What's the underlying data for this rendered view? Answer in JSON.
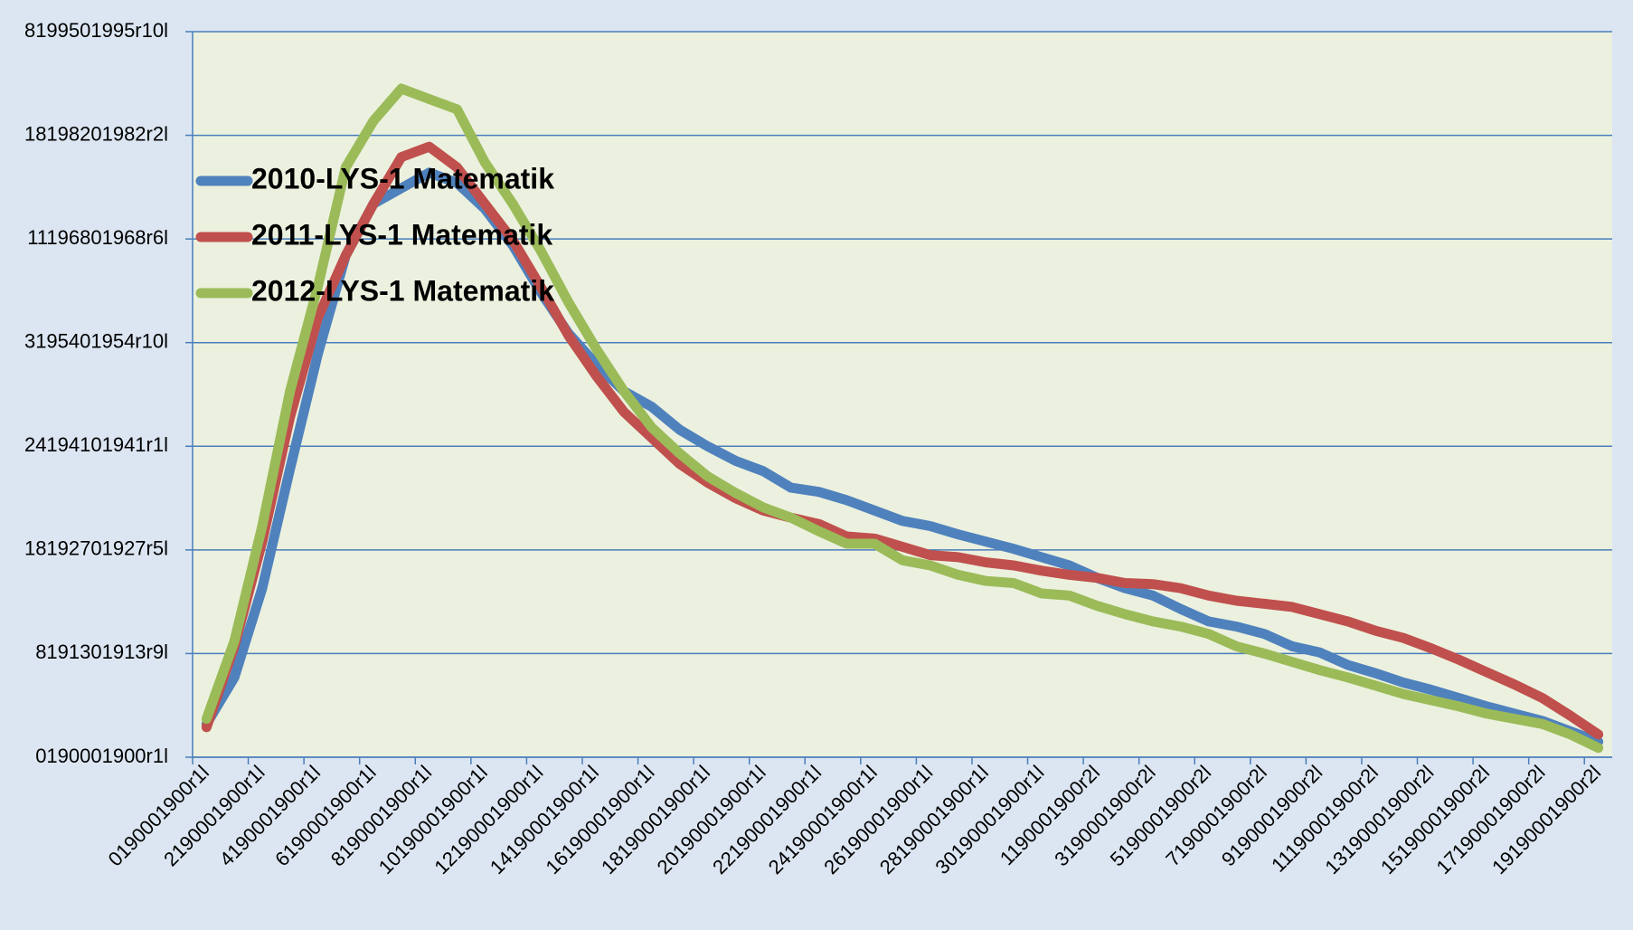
{
  "chart_data": {
    "type": "line",
    "categories": [
      "0190001900r1l",
      null,
      "2190001900r1l",
      null,
      "4190001900r1l",
      null,
      "6190001900r1l",
      null,
      "8190001900r1l",
      null,
      "10190001900r1l",
      null,
      "12190001900r1l",
      null,
      "14190001900r1l",
      null,
      "16190001900r1l",
      null,
      "18190001900r1l",
      null,
      "20190001900r1l",
      null,
      "22190001900r1l",
      null,
      "24190001900r1l",
      null,
      "26190001900r1l",
      null,
      "28190001900r1l",
      null,
      "30190001900r1l",
      null,
      "1190001900r2l",
      null,
      "3190001900r2l",
      null,
      "5190001900r2l",
      null,
      "7190001900r2l",
      null,
      "9190001900r2l",
      null,
      "11190001900r2l",
      null,
      "13190001900r2l",
      null,
      "15190001900r2l",
      null,
      "17190001900r2l",
      null,
      "19190001900r2l"
    ],
    "series": [
      {
        "name": "2010-LYS-1 Matematik",
        "color": "#4f81bd",
        "values": [
          0.32,
          0.77,
          1.63,
          2.78,
          3.89,
          4.84,
          5.34,
          5.49,
          5.64,
          5.54,
          5.29,
          4.94,
          4.49,
          4.09,
          3.79,
          3.53,
          3.38,
          3.16,
          3.0,
          2.86,
          2.76,
          2.6,
          2.56,
          2.48,
          2.38,
          2.28,
          2.23,
          2.15,
          2.08,
          2.01,
          1.93,
          1.85,
          1.73,
          1.63,
          1.56,
          1.43,
          1.31,
          1.26,
          1.19,
          1.07,
          1.01,
          0.89,
          0.81,
          0.72,
          0.65,
          0.57,
          0.49,
          0.42,
          0.35,
          0.25,
          0.15
        ]
      },
      {
        "name": "2011-LYS-1 Matematik",
        "color": "#c0504d",
        "values": [
          0.29,
          1.07,
          2.08,
          3.28,
          4.24,
          4.84,
          5.34,
          5.79,
          5.89,
          5.69,
          5.34,
          4.99,
          4.54,
          4.07,
          3.68,
          3.33,
          3.08,
          2.83,
          2.65,
          2.5,
          2.38,
          2.31,
          2.25,
          2.13,
          2.11,
          2.03,
          1.95,
          1.93,
          1.88,
          1.85,
          1.8,
          1.76,
          1.73,
          1.68,
          1.67,
          1.63,
          1.56,
          1.51,
          1.48,
          1.45,
          1.38,
          1.31,
          1.22,
          1.15,
          1.05,
          0.94,
          0.82,
          0.7,
          0.57,
          0.4,
          0.22
        ]
      },
      {
        "name": "2012-LYS-1 Matematik",
        "color": "#9bbb59",
        "values": [
          0.37,
          1.12,
          2.23,
          3.53,
          4.54,
          5.69,
          6.14,
          6.45,
          6.35,
          6.25,
          5.74,
          5.34,
          4.89,
          4.39,
          3.94,
          3.53,
          3.18,
          2.93,
          2.71,
          2.55,
          2.41,
          2.31,
          2.18,
          2.06,
          2.06,
          1.9,
          1.85,
          1.76,
          1.7,
          1.68,
          1.58,
          1.56,
          1.46,
          1.38,
          1.31,
          1.26,
          1.19,
          1.07,
          1.0,
          0.92,
          0.84,
          0.77,
          0.69,
          0.61,
          0.55,
          0.49,
          0.42,
          0.37,
          0.32,
          0.22,
          0.09
        ]
      }
    ],
    "ylim": [
      0,
      7
    ],
    "yticks": [
      {
        "value": 0,
        "label": "0190001900r1l"
      },
      {
        "value": 1,
        "label": "8191301913r9l"
      },
      {
        "value": 2,
        "label": "18192701927r5l"
      },
      {
        "value": 3,
        "label": "24194101941r1l"
      },
      {
        "value": 4,
        "label": "3195401954r10l"
      },
      {
        "value": 5,
        "label": "11196801968r6l"
      },
      {
        "value": 6,
        "label": "18198201982r2l"
      },
      {
        "value": 7,
        "label": "8199501995r10l"
      }
    ],
    "grid": true,
    "legend": "upper-left"
  }
}
